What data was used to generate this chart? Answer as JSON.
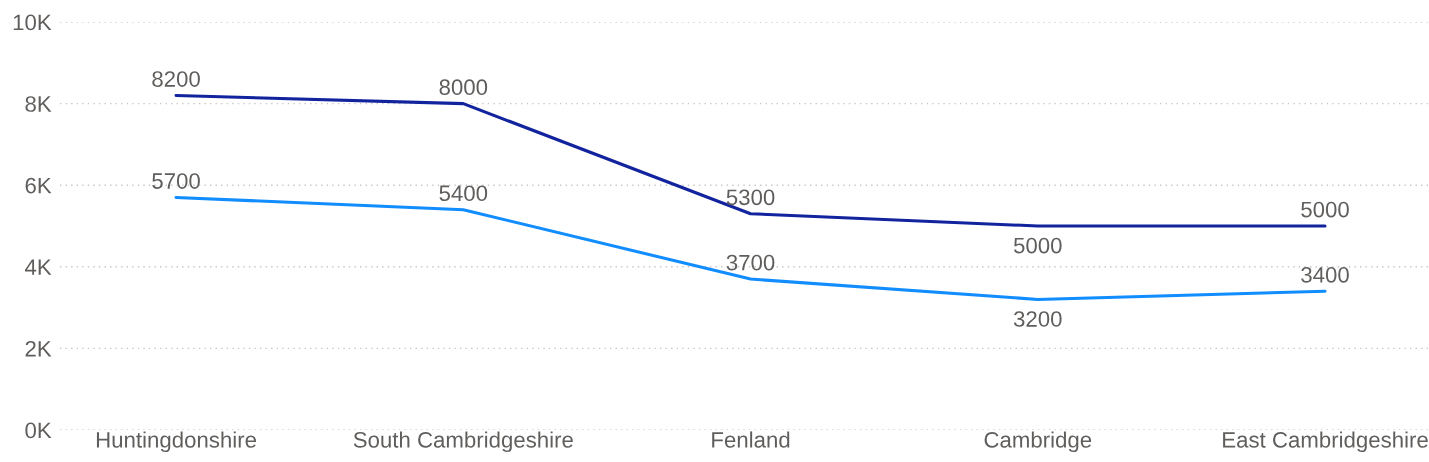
{
  "chart_data": {
    "type": "line",
    "categories": [
      "Huntingdonshire",
      "South Cambridgeshire",
      "Fenland",
      "Cambridge",
      "East Cambridgeshire"
    ],
    "series": [
      {
        "color": "#12239e",
        "values": [
          8200,
          8000,
          5300,
          5000,
          5000
        ]
      },
      {
        "color": "#118dff",
        "values": [
          5700,
          5400,
          3700,
          3200,
          3400
        ]
      }
    ],
    "ylim": [
      0,
      10000
    ],
    "yticks": [
      {
        "value": 0,
        "label": "0K"
      },
      {
        "value": 2000,
        "label": "2K"
      },
      {
        "value": 4000,
        "label": "4K"
      },
      {
        "value": 6000,
        "label": "6K"
      },
      {
        "value": 8000,
        "label": "8K"
      },
      {
        "value": 10000,
        "label": "10K"
      }
    ],
    "grid": "y",
    "data_labels": true,
    "line_style": "solid"
  }
}
